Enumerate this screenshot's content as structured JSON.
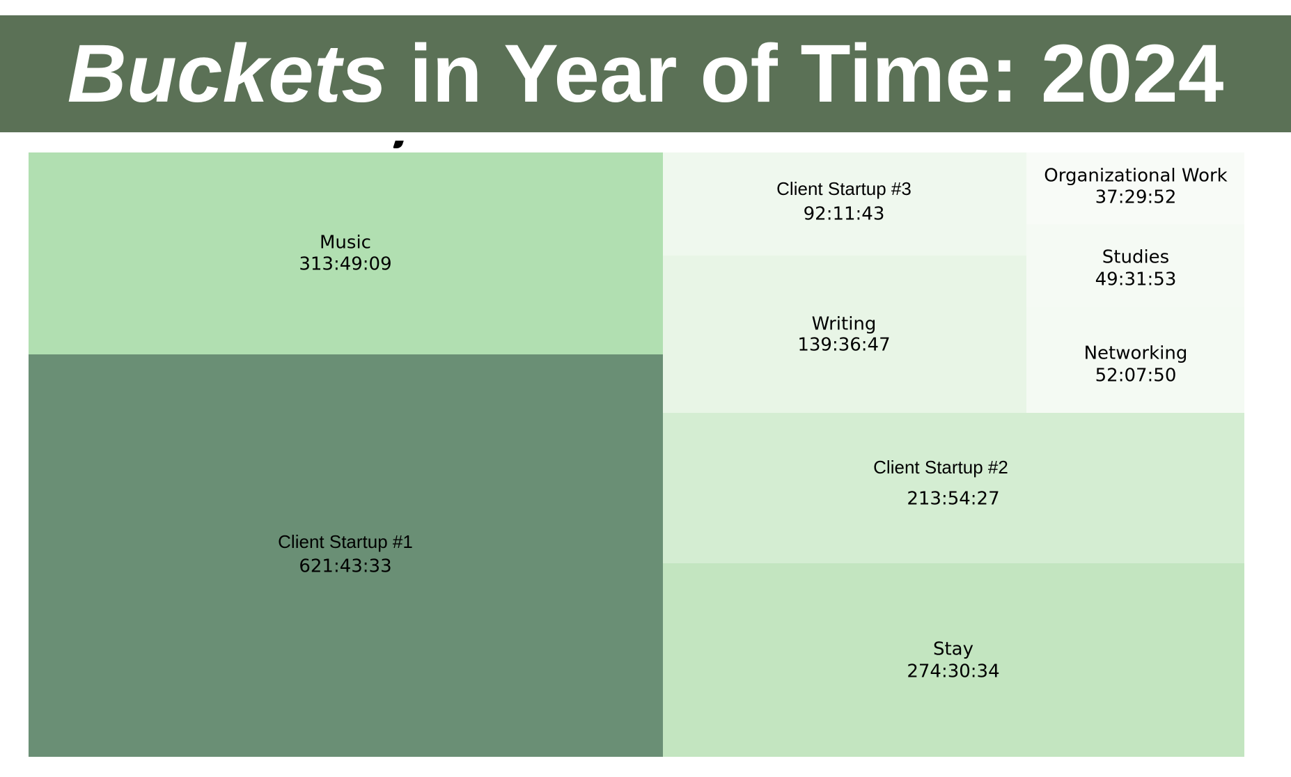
{
  "title": {
    "emphasis": "Buckets",
    "rest": "in Year of Time: 2024"
  },
  "chart_data": {
    "type": "treemap",
    "title": "Buckets in Year of Time: 2024",
    "value_unit": "hours:minutes:seconds",
    "items": [
      {
        "name": "Client Startup #1",
        "value": "621:43:33",
        "hours": 621.726,
        "color": "#6a8f75",
        "label_bold": false
      },
      {
        "name": "Music",
        "value": "313:49:09",
        "hours": 313.819,
        "color": "#b1dfb1",
        "label_bold": false
      },
      {
        "name": "Stay",
        "value": "274:30:34",
        "hours": 274.509,
        "color": "#c3e5c0",
        "label_bold": false
      },
      {
        "name": "Client Startup #2",
        "value": "213:54:27",
        "hours": 213.908,
        "color": "#d4edd2",
        "label_bold": false
      },
      {
        "name": "Writing",
        "value": "139:36:47",
        "hours": 139.613,
        "color": "#e8f5e6",
        "label_bold": false
      },
      {
        "name": "Client Startup #3",
        "value": "92:11:43",
        "hours": 92.195,
        "color": "#eff8ee",
        "label_bold": false
      },
      {
        "name": "Networking",
        "value": "52:07:50",
        "hours": 52.131,
        "color": "#f4faf3",
        "label_bold": false
      },
      {
        "name": "Studies",
        "value": "49:31:53",
        "hours": 49.531,
        "color": "#f5faf4",
        "label_bold": false
      },
      {
        "name": "Organizational Work",
        "value": "37:29:52",
        "hours": 37.498,
        "color": "#f8fbf7",
        "label_bold": false
      }
    ]
  }
}
